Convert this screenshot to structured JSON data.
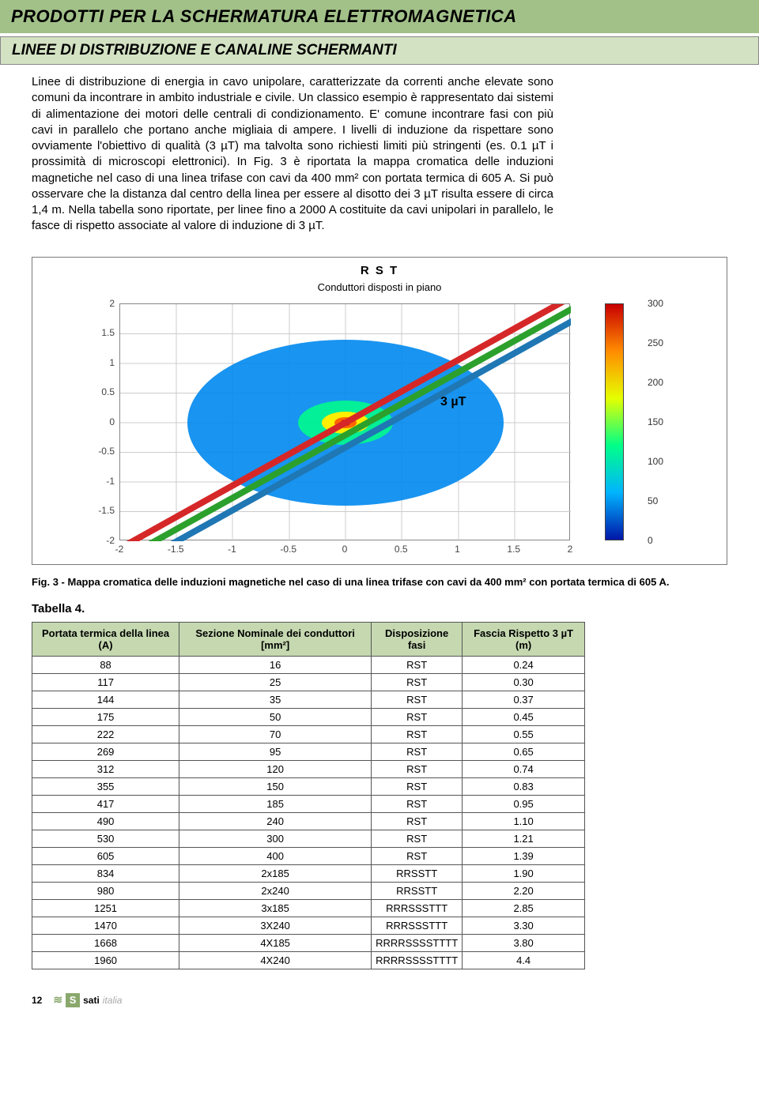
{
  "header": {
    "title": "PRODOTTI PER LA SCHERMATURA ELETTROMAGNETICA",
    "subtitle": "LINEE DI DISTRIBUZIONE E CANALINE SCHERMANTI"
  },
  "body_text": "Linee di distribuzione di energia in cavo unipolare, caratterizzate da correnti anche elevate sono comuni da incontrare in ambito industriale e civile. Un classico esempio è rappresentato dai sistemi di alimentazione dei motori delle centrali di condizionamento. E' comune incontrare fasi con più cavi in parallelo che portano anche migliaia di ampere. I livelli di induzione da rispettare sono ovviamente l'obiettivo di qualità (3 µT) ma talvolta sono richiesti limiti più stringenti (es. 0.1 µT i prossimità di microscopi elettronici). In Fig. 3 è riportata la mappa cromatica delle induzioni magnetiche nel caso di una linea trifase con cavi da 400 mm² con portata termica di 605 A. Si può osservare che la distanza dal centro della linea per essere al disotto dei 3 µT risulta essere di circa 1,4 m. Nella tabella sono riportate, per linee fino a 2000 A costituite da cavi unipolari in parallelo, le fasce di rispetto associate al valore di induzione di 3 µT.",
  "figure": {
    "rst_label": "R S T",
    "subtitle": "Conduttori disposti in piano",
    "annotation": "3 µT",
    "y_ticks": [
      "2",
      "1.5",
      "1",
      "0.5",
      "0",
      "-0.5",
      "-1",
      "-1.5",
      "-2"
    ],
    "x_ticks": [
      "-2",
      "-1.5",
      "-1",
      "-0.5",
      "0",
      "0.5",
      "1",
      "1.5",
      "2"
    ],
    "colorbar_ticks": [
      "300",
      "250",
      "200",
      "150",
      "100",
      "50",
      "0"
    ],
    "ellipse_fill": "#0099ff",
    "plot_bg": "#ffffff",
    "conductor_colors": [
      "#d62728",
      "#2ca02c",
      "#1f77b4"
    ],
    "caption": "Fig. 3 - Mappa cromatica delle induzioni magnetiche nel caso di una linea trifase con cavi da 400 mm² con portata termica di 605 A."
  },
  "table": {
    "title": "Tabella 4.",
    "columns": [
      "Portata termica della linea (A)",
      "Sezione Nominale dei conduttori [mm²]",
      "Disposizione fasi",
      "Fascia Rispetto 3 µT (m)"
    ],
    "rows": [
      [
        "88",
        "16",
        "RST",
        "0.24"
      ],
      [
        "117",
        "25",
        "RST",
        "0.30"
      ],
      [
        "144",
        "35",
        "RST",
        "0.37"
      ],
      [
        "175",
        "50",
        "RST",
        "0.45"
      ],
      [
        "222",
        "70",
        "RST",
        "0.55"
      ],
      [
        "269",
        "95",
        "RST",
        "0.65"
      ],
      [
        "312",
        "120",
        "RST",
        "0.74"
      ],
      [
        "355",
        "150",
        "RST",
        "0.83"
      ],
      [
        "417",
        "185",
        "RST",
        "0.95"
      ],
      [
        "490",
        "240",
        "RST",
        "1.10"
      ],
      [
        "530",
        "300",
        "RST",
        "1.21"
      ],
      [
        "605",
        "400",
        "RST",
        "1.39"
      ],
      [
        "834",
        "2x185",
        "RRSSTT",
        "1.90"
      ],
      [
        "980",
        "2x240",
        "RRSSTT",
        "2.20"
      ],
      [
        "1251",
        "3x185",
        "RRRSSSTTT",
        "2.85"
      ],
      [
        "1470",
        "3X240",
        "RRRSSSTTT",
        "3.30"
      ],
      [
        "1668",
        "4X185",
        "RRRRSSSSTTTT",
        "3.80"
      ],
      [
        "1960",
        "4X240",
        "RRRRSSSSTTTT",
        "4.4"
      ]
    ]
  },
  "footer": {
    "page": "12",
    "brand_bold": "sati",
    "brand_light": "italia"
  }
}
